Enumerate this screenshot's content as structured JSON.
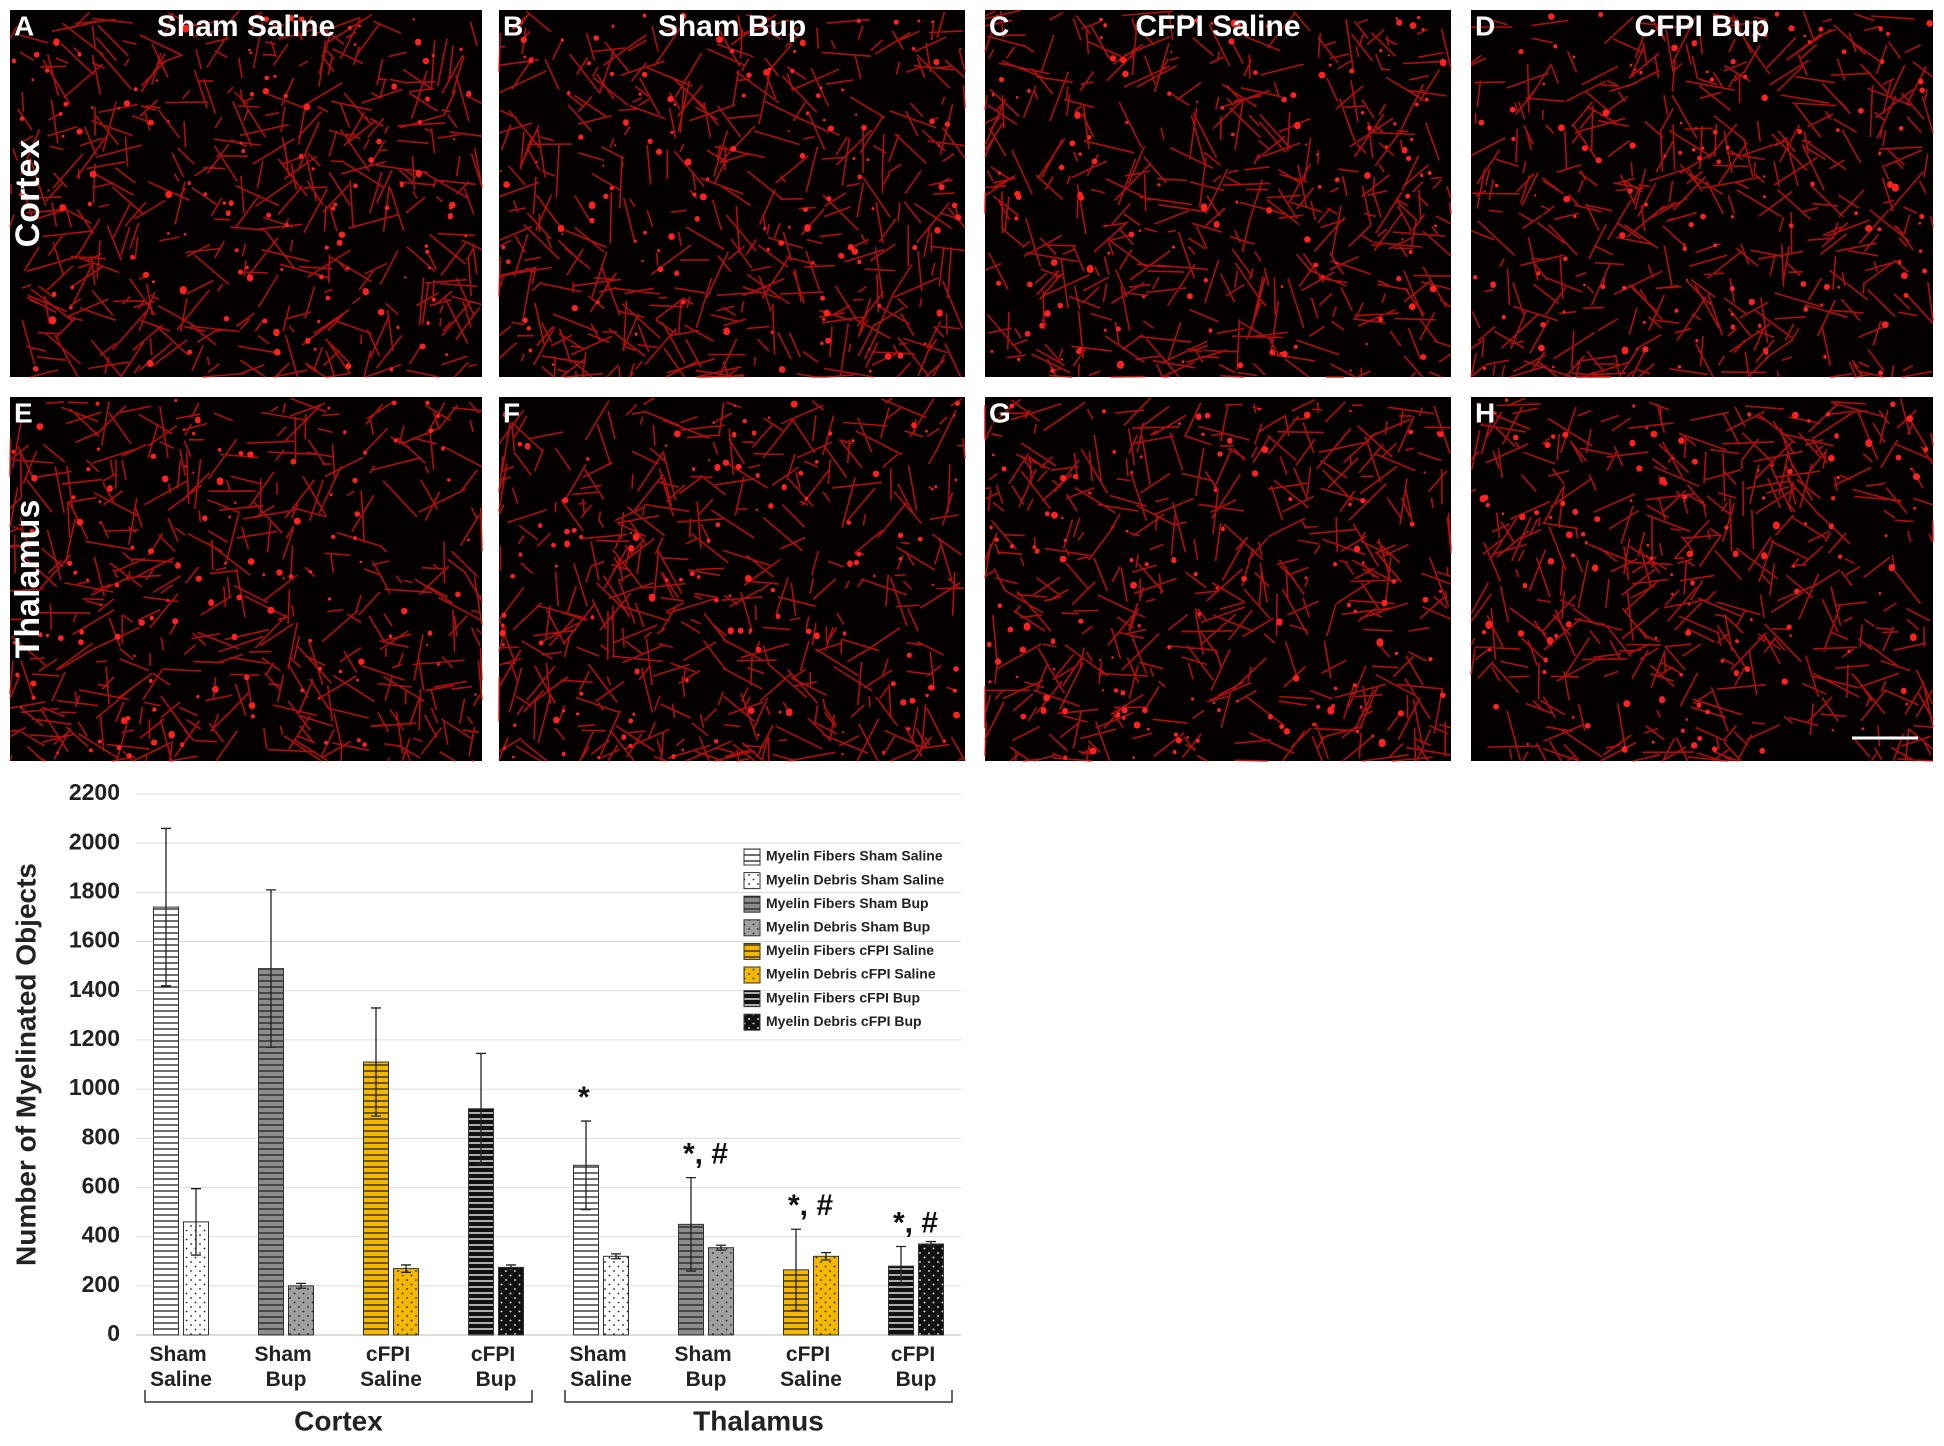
{
  "panels": [
    {
      "letter": "A",
      "title": "Sham Saline"
    },
    {
      "letter": "B",
      "title": "Sham Bup"
    },
    {
      "letter": "C",
      "title": "CFPI Saline"
    },
    {
      "letter": "D",
      "title": "CFPI Bup"
    },
    {
      "letter": "E"
    },
    {
      "letter": "F"
    },
    {
      "letter": "G"
    },
    {
      "letter": "H"
    }
  ],
  "row_labels": [
    "Cortex",
    "Thalamus"
  ],
  "chart_data": {
    "type": "bar",
    "ylabel": "Number of Myelinated Objects",
    "categories": [
      "Sham Saline",
      "Sham Bup",
      "cFPI Saline",
      "cFPI Bup",
      "Sham Saline",
      "Sham Bup",
      "cFPI Saline",
      "cFPI Bup"
    ],
    "groups": [
      {
        "label": "Cortex",
        "size": 4
      },
      {
        "label": "Thalamus",
        "size": 4
      }
    ],
    "ylim": [
      0,
      2200
    ],
    "yticks": [
      0,
      200,
      400,
      600,
      800,
      1000,
      1200,
      1400,
      1600,
      1800,
      2000,
      2200
    ],
    "grid": true,
    "legend": "upper right",
    "series": [
      {
        "name": "Myelin Fibers Sham Saline",
        "color": "#ffffff",
        "pattern": "stripes",
        "values": [
          1740,
          null,
          null,
          null,
          690,
          null,
          null,
          null
        ],
        "errors": [
          320,
          null,
          null,
          null,
          180,
          null,
          null,
          null
        ]
      },
      {
        "name": "Myelin Debris Sham Saline",
        "color": "#ffffff",
        "pattern": "dots",
        "values": [
          460,
          null,
          null,
          null,
          320,
          null,
          null,
          null
        ],
        "errors": [
          135,
          null,
          null,
          null,
          10,
          null,
          null,
          null
        ]
      },
      {
        "name": "Myelin Fibers Sham Bup",
        "color": "#8c8c8c",
        "pattern": "stripes",
        "values": [
          null,
          1490,
          null,
          null,
          null,
          450,
          null,
          null
        ],
        "errors": [
          null,
          320,
          null,
          null,
          null,
          190,
          null,
          null
        ]
      },
      {
        "name": "Myelin Debris Sham Bup",
        "color": "#a0a0a0",
        "pattern": "dots",
        "values": [
          null,
          200,
          null,
          null,
          null,
          355,
          null,
          null
        ],
        "errors": [
          null,
          10,
          null,
          null,
          null,
          10,
          null,
          null
        ]
      },
      {
        "name": "Myelin Fibers cFPI Saline",
        "color": "#f5b800",
        "pattern": "stripes",
        "values": [
          null,
          null,
          1110,
          null,
          null,
          null,
          265,
          null
        ],
        "errors": [
          null,
          null,
          220,
          null,
          null,
          null,
          165,
          null
        ]
      },
      {
        "name": "Myelin Debris cFPI Saline",
        "color": "#f5b800",
        "pattern": "dots",
        "values": [
          null,
          null,
          270,
          null,
          null,
          null,
          320,
          null
        ],
        "errors": [
          null,
          null,
          15,
          null,
          null,
          null,
          15,
          null
        ]
      },
      {
        "name": "Myelin Fibers cFPI Bup",
        "color": "#111111",
        "pattern": "stripes",
        "values": [
          null,
          null,
          null,
          920,
          null,
          null,
          null,
          280
        ],
        "errors": [
          null,
          null,
          null,
          225,
          null,
          null,
          null,
          80
        ]
      },
      {
        "name": "Myelin Debris cFPI Bup",
        "color": "#111111",
        "pattern": "dots",
        "values": [
          null,
          null,
          null,
          275,
          null,
          null,
          null,
          370
        ],
        "errors": [
          null,
          null,
          null,
          10,
          null,
          null,
          null,
          10
        ]
      }
    ],
    "annotations": [
      {
        "category": 4,
        "text": "*"
      },
      {
        "category": 5,
        "text": "*, #"
      },
      {
        "category": 6,
        "text": "*, #"
      },
      {
        "category": 7,
        "text": "*, #"
      }
    ]
  }
}
